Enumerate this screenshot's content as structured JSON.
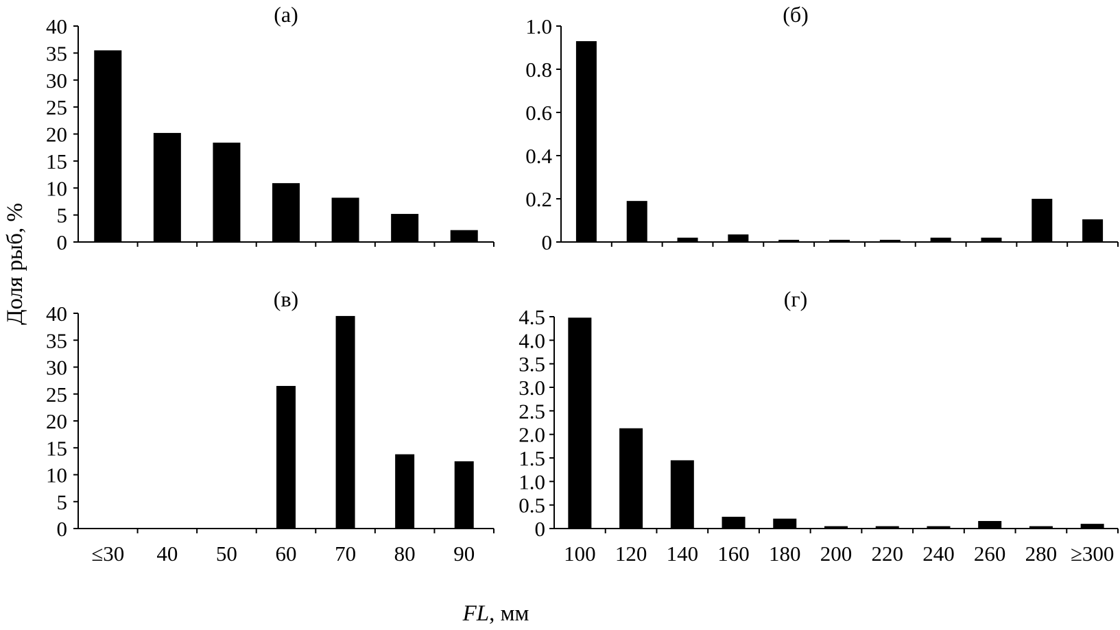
{
  "figure": {
    "ylabel": "Доля рыб, %",
    "xlabel_italic": "FL",
    "xlabel_rest": ", мм"
  },
  "chart_data": [
    {
      "type": "bar",
      "title": "(а)",
      "categories": [
        "≤30",
        "40",
        "50",
        "60",
        "70",
        "80",
        "90"
      ],
      "values": [
        35.5,
        20.2,
        18.4,
        10.9,
        8.2,
        5.2,
        2.2
      ],
      "ylim": [
        0,
        40
      ],
      "yticks": [
        "0",
        "5",
        "10",
        "15",
        "20",
        "25",
        "30",
        "35",
        "40"
      ],
      "show_x_labels": false
    },
    {
      "type": "bar",
      "title": "(б)",
      "categories": [
        "100",
        "120",
        "140",
        "160",
        "180",
        "200",
        "220",
        "240",
        "260",
        "280",
        "≥300"
      ],
      "values": [
        0.93,
        0.19,
        0.02,
        0.035,
        0.01,
        0.01,
        0.01,
        0.02,
        0.02,
        0.2,
        0.105
      ],
      "ylim": [
        0,
        1.0
      ],
      "yticks": [
        "0",
        "0.2",
        "0.4",
        "0.6",
        "0.8",
        "1.0"
      ],
      "show_x_labels": false
    },
    {
      "type": "bar",
      "title": "(в)",
      "categories": [
        "≤30",
        "40",
        "50",
        "60",
        "70",
        "80",
        "90"
      ],
      "values": [
        0,
        0,
        0,
        26.5,
        39.5,
        13.8,
        12.5
      ],
      "ylim": [
        0,
        40
      ],
      "yticks": [
        "0",
        "5",
        "10",
        "15",
        "20",
        "25",
        "30",
        "35",
        "40"
      ],
      "show_x_labels": true
    },
    {
      "type": "bar",
      "title": "(г)",
      "categories": [
        "100",
        "120",
        "140",
        "160",
        "180",
        "200",
        "220",
        "240",
        "260",
        "280",
        "≥300"
      ],
      "values": [
        4.48,
        2.13,
        1.45,
        0.25,
        0.21,
        0.05,
        0.05,
        0.05,
        0.16,
        0.05,
        0.1
      ],
      "ylim": [
        0,
        4.5
      ],
      "yticks": [
        "0",
        "0.5",
        "1.0",
        "1.5",
        "2.0",
        "2.5",
        "3.0",
        "3.5",
        "4.0",
        "4.5"
      ],
      "show_x_labels": true
    }
  ]
}
